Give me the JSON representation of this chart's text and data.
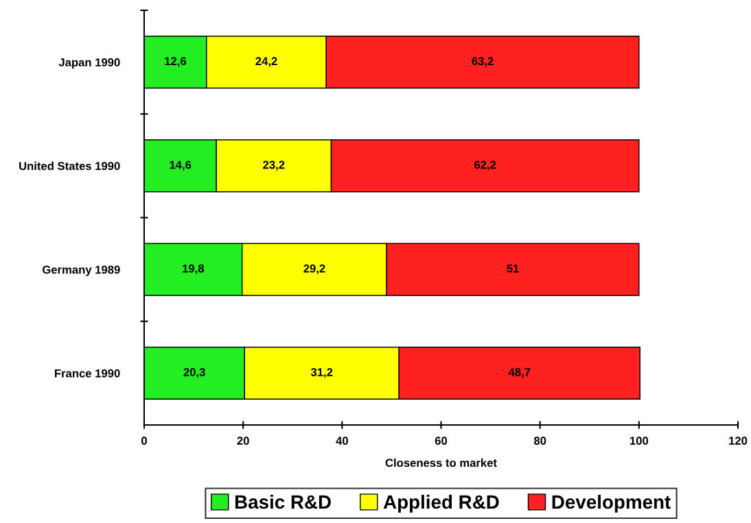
{
  "chart_data": {
    "type": "bar",
    "orientation": "horizontal",
    "stacked": true,
    "categories": [
      "Japan 1990",
      "United States 1990",
      "Germany 1989",
      "France 1990"
    ],
    "series": [
      {
        "name": "Basic R&D",
        "color": "#22ee22",
        "values": [
          12.6,
          14.6,
          19.8,
          20.3
        ],
        "value_labels": [
          "12,6",
          "14,6",
          "19,8",
          "20,3"
        ]
      },
      {
        "name": "Applied R&D",
        "color": "#ffff00",
        "values": [
          24.2,
          23.2,
          29.2,
          31.2
        ],
        "value_labels": [
          "24,2",
          "23,2",
          "29,2",
          "31,2"
        ]
      },
      {
        "name": "Development",
        "color": "#ff2020",
        "values": [
          63.2,
          62.2,
          51,
          48.7
        ],
        "value_labels": [
          "63,2",
          "62,2",
          "51",
          "48,7"
        ]
      }
    ],
    "xlabel": "Closeness to market",
    "xlim": [
      0,
      120
    ],
    "xticks": [
      0,
      20,
      40,
      60,
      80,
      100,
      120
    ],
    "grid": false,
    "legend": "bottom"
  }
}
